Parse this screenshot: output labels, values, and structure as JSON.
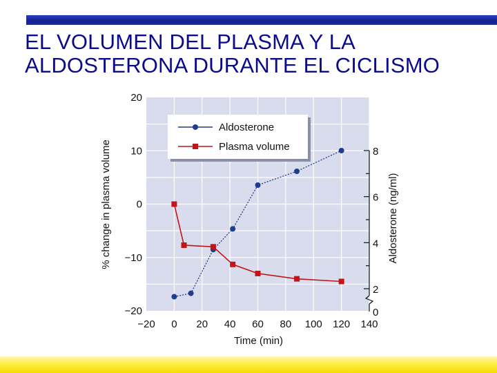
{
  "slide": {
    "title_line1": "EL VOLUMEN DEL PLASMA Y LA",
    "title_line2": "ALDOSTERONA DURANTE EL CICLISMO"
  },
  "colors": {
    "title": "#0a0a8c",
    "top_bar": "#1a2a9e",
    "bottom_bar": "#ffee44",
    "plot_bg": "#d9dcec",
    "aldosterone": "#1f3d8f",
    "plasma_volume": "#c0151b"
  },
  "chart_data": {
    "type": "line",
    "xlabel": "Time (min)",
    "ylabel_left": "% change in plasma volume",
    "ylabel_right": "Aldosterone (ng/ml)",
    "xlim": [
      -20,
      140
    ],
    "x_ticks": [
      -20,
      0,
      20,
      40,
      60,
      80,
      100,
      120,
      140
    ],
    "x_tick_labels": [
      "−20",
      "0",
      "20",
      "40",
      "60",
      "80",
      "100",
      "120",
      "140"
    ],
    "ylim_left": [
      -20,
      20
    ],
    "y_left_ticks": [
      -20,
      -10,
      0,
      10,
      20
    ],
    "y_left_tick_labels": [
      "−20",
      "−10",
      "0",
      "10",
      "20"
    ],
    "ylim_right": [
      0,
      8
    ],
    "y_right_ticks": [
      0,
      2,
      4,
      6,
      8
    ],
    "y_right_tick_labels": [
      "0",
      "2",
      "4",
      "6",
      "8"
    ],
    "y_right_axis_break": true,
    "grid": true,
    "legend_position": "top-left",
    "series": [
      {
        "name": "Aldosterone",
        "axis": "right",
        "marker": "circle",
        "x": [
          0,
          12,
          28,
          42,
          60,
          88,
          120
        ],
        "y": [
          1.3,
          1.6,
          3.7,
          4.6,
          6.5,
          7.1,
          8.0
        ]
      },
      {
        "name": "Plasma volume",
        "axis": "left",
        "marker": "square",
        "x": [
          0,
          7,
          28,
          42,
          60,
          88,
          120
        ],
        "y": [
          0,
          -7.7,
          -8,
          -11.3,
          -13,
          -14,
          -14.5
        ]
      }
    ]
  }
}
